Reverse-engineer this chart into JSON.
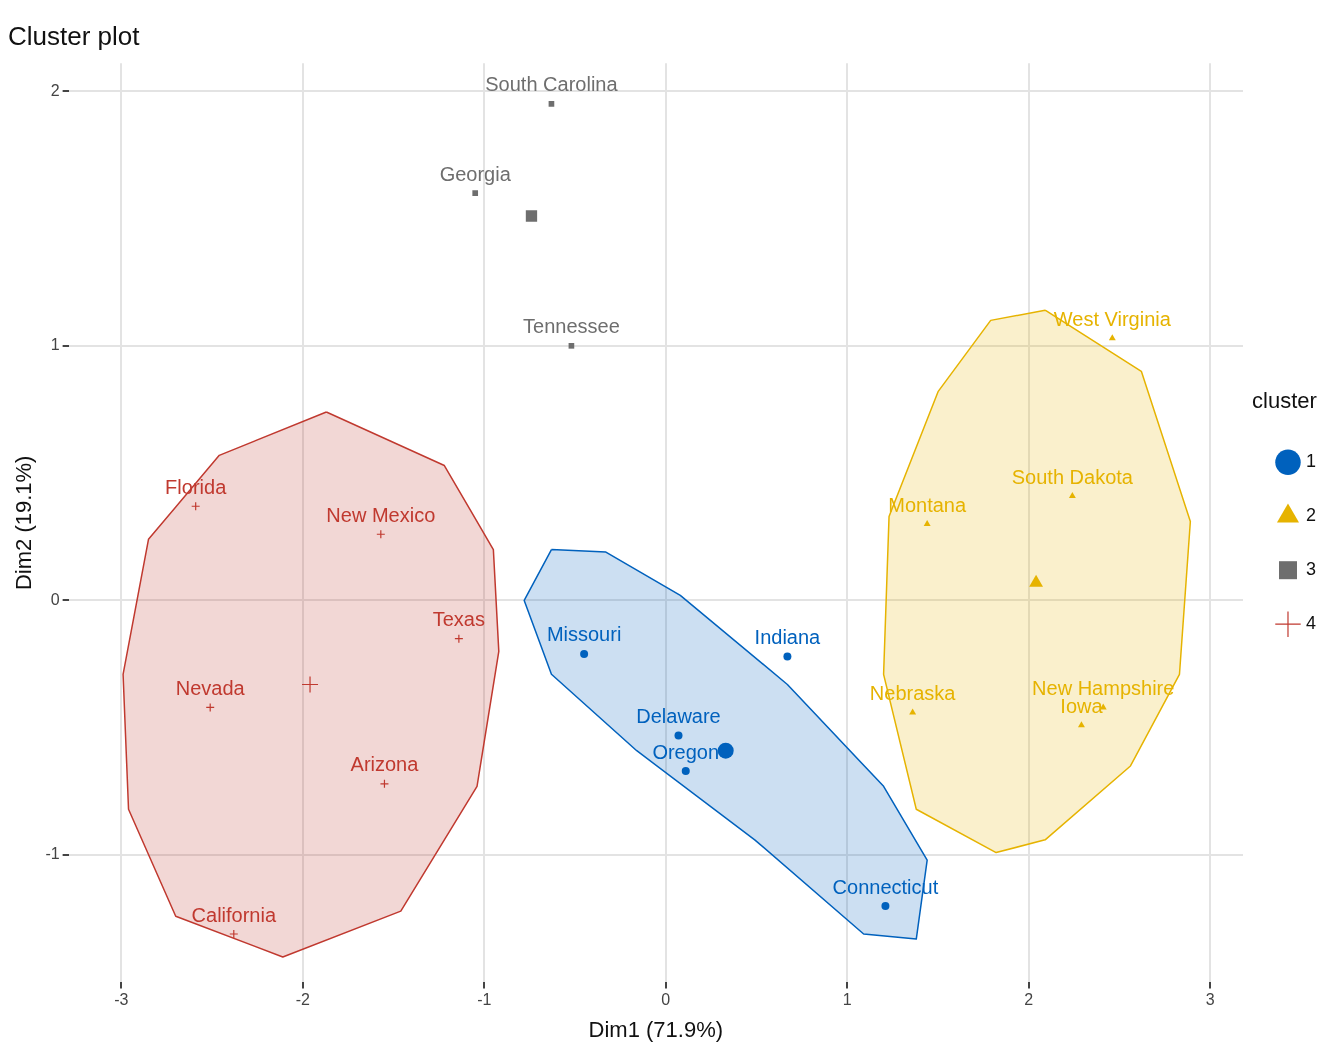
{
  "chart_data": {
    "type": "scatter",
    "title": "Cluster plot",
    "xlabel": "Dim1 (71.9%)",
    "ylabel": "Dim2 (19.1%)",
    "legend_title": "cluster",
    "legend": "right",
    "grid": true,
    "xlim": [
      -3.29,
      3.18
    ],
    "xticks": [
      -3,
      -2,
      -1,
      0,
      1,
      2,
      3
    ],
    "ylim": [
      -1.5,
      2.11
    ],
    "yticks": [
      -1,
      0,
      1,
      2
    ],
    "series": [
      {
        "type": "area",
        "color": "#c0392f",
        "x": [
          -1.87,
          -1.22,
          -0.95,
          -0.92,
          -1.04,
          -1.46,
          -2.11,
          -2.7,
          -2.96,
          -2.99,
          -2.85,
          -2.46,
          -1.87
        ],
        "values": [
          0.74,
          0.53,
          0.2,
          -0.2,
          -0.73,
          -1.22,
          -1.4,
          -1.24,
          -0.82,
          -0.29,
          0.24,
          0.57,
          0.74
        ]
      },
      {
        "type": "area",
        "color": "#0061bd",
        "x": [
          -0.63,
          -0.78,
          -0.63,
          -0.16,
          0.49,
          1.09,
          1.38,
          1.44,
          1.2,
          0.67,
          0.08,
          -0.33,
          -0.63
        ],
        "values": [
          0.2,
          0,
          -0.29,
          -0.59,
          -0.94,
          -1.31,
          -1.33,
          -1.02,
          -0.73,
          -0.33,
          0.02,
          0.19,
          0.2
        ]
      },
      {
        "type": "area",
        "color": "#e6b300",
        "x": [
          2.09,
          2.62,
          2.89,
          2.83,
          2.56,
          2.09,
          1.82,
          1.38,
          1.2,
          1.23,
          1.5,
          1.79,
          2.09
        ],
        "values": [
          1.14,
          0.9,
          0.31,
          -0.29,
          -0.65,
          -0.94,
          -0.99,
          -0.82,
          -0.29,
          0.33,
          0.82,
          1.1,
          1.14
        ]
      },
      {
        "name": "1",
        "color": "#0061bd",
        "marker": "circle",
        "x": [
          -0.45,
          0.67,
          0.07,
          0.11,
          1.21
        ],
        "values": [
          -0.21,
          -0.22,
          -0.53,
          -0.67,
          -1.2
        ]
      },
      {
        "name": "2",
        "color": "#e6b300",
        "marker": "triangle",
        "x": [
          2.46,
          2.24,
          1.44,
          1.36,
          2.41,
          2.29
        ],
        "values": [
          1.03,
          0.41,
          0.3,
          -0.44,
          -0.42,
          -0.49
        ]
      },
      {
        "name": "3",
        "color": "#6e6e6e",
        "marker": "square",
        "x": [
          -0.63,
          -1.05,
          -0.52
        ],
        "values": [
          1.95,
          1.6,
          1.0
        ]
      },
      {
        "name": "4",
        "color": "#c0392f",
        "marker": "cross",
        "x": [
          -2.59,
          -1.57,
          -1.14,
          -2.51,
          -1.55,
          -2.38
        ],
        "values": [
          0.37,
          0.26,
          -0.15,
          -0.42,
          -0.72,
          -1.31
        ]
      },
      {
        "color": "#0061bd",
        "marker": "circle",
        "x": [
          0.33
        ],
        "values": [
          -0.59
        ]
      },
      {
        "color": "#e6b300",
        "marker": "triangle",
        "x": [
          2.04
        ],
        "values": [
          0.07
        ]
      },
      {
        "color": "#6e6e6e",
        "marker": "square",
        "x": [
          -0.74
        ],
        "values": [
          1.51
        ]
      },
      {
        "color": "#c0392f",
        "marker": "cross",
        "x": [
          -1.96
        ],
        "values": [
          -0.33
        ]
      }
    ],
    "annotations": [
      {
        "text": "Missouri",
        "x": -0.45,
        "y": -0.21
      },
      {
        "text": "Indiana",
        "x": 0.67,
        "y": -0.22
      },
      {
        "text": "Delaware",
        "x": 0.07,
        "y": -0.53
      },
      {
        "text": "Oregon",
        "x": 0.11,
        "y": -0.67
      },
      {
        "text": "Connecticut",
        "x": 1.21,
        "y": -1.2
      },
      {
        "text": "West Virginia",
        "x": 2.46,
        "y": 1.03
      },
      {
        "text": "South Dakota",
        "x": 2.24,
        "y": 0.41
      },
      {
        "text": "Montana",
        "x": 1.44,
        "y": 0.3
      },
      {
        "text": "Nebraska",
        "x": 1.36,
        "y": -0.44
      },
      {
        "text": "New Hampshire",
        "x": 2.41,
        "y": -0.42
      },
      {
        "text": "Iowa",
        "x": 2.29,
        "y": -0.49
      },
      {
        "text": "South Carolina",
        "x": -0.63,
        "y": 1.95
      },
      {
        "text": "Georgia",
        "x": -1.05,
        "y": 1.6
      },
      {
        "text": "Tennessee",
        "x": -0.52,
        "y": 1.0
      },
      {
        "text": "Florida",
        "x": -2.59,
        "y": 0.37
      },
      {
        "text": "New Mexico",
        "x": -1.57,
        "y": 0.26
      },
      {
        "text": "Texas",
        "x": -1.14,
        "y": -0.15
      },
      {
        "text": "Nevada",
        "x": -2.51,
        "y": -0.42
      },
      {
        "text": "Arizona",
        "x": -1.55,
        "y": -0.72
      },
      {
        "text": "California",
        "x": -2.38,
        "y": -1.31
      }
    ]
  }
}
